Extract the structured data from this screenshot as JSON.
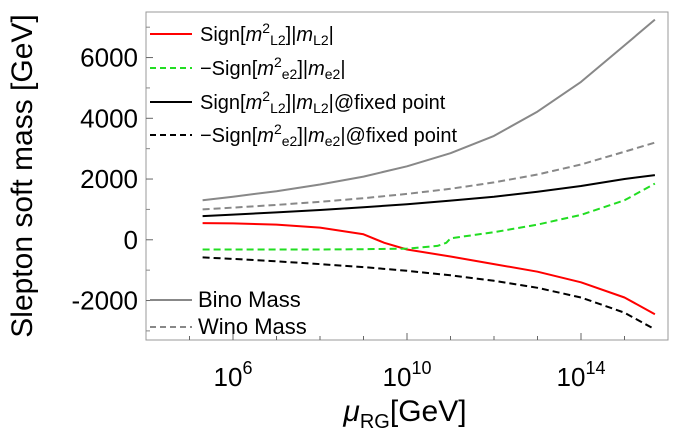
{
  "chart_data": {
    "type": "line",
    "xlabel_main": "μ",
    "xlabel_sub": "RG",
    "xlabel_unit": "[GeV]",
    "ylabel": "Slepton soft mass [GeV]",
    "x_scale": "log10",
    "xlim": [
      10000,
      10000000000000000
    ],
    "ylim": [
      -3300,
      7500
    ],
    "x_ticks": [
      {
        "value": 1000000,
        "base": "10",
        "exp": "6"
      },
      {
        "value": 10000000000,
        "base": "10",
        "exp": "10"
      },
      {
        "value": 100000000000000,
        "base": "10",
        "exp": "14"
      }
    ],
    "y_ticks": [
      -2000,
      0,
      2000,
      4000,
      6000
    ],
    "y_tick_labels": [
      "-2000",
      "0",
      "2000",
      "4000",
      "6000"
    ],
    "grid": false,
    "series": [
      {
        "name": "Sign[m2L2]|mL2|",
        "legend_parts": {
          "a": "Sign[",
          "m": "m",
          "sup": "2",
          "sub1": "L2",
          "b": "]|",
          "m2": "m",
          "sub2": "L2",
          "c": "|",
          "d": ""
        },
        "color": "#ff0000",
        "dash": "solid",
        "x": [
          200000,
          1000000,
          10000000,
          100000000,
          1000000000,
          3000000000,
          10000000000,
          100000000000,
          1000000000000,
          10000000000000,
          100000000000000,
          1000000000000000,
          5000000000000000
        ],
        "y": [
          550,
          540,
          500,
          400,
          180,
          -100,
          -320,
          -550,
          -800,
          -1050,
          -1400,
          -1900,
          -2450
        ]
      },
      {
        "name": "-Sign[m2e2]|me2|",
        "legend_parts": {
          "a": "−Sign[",
          "m": "m",
          "sup": "2",
          "sub1": "e2",
          "b": "]|",
          "m2": "m",
          "sub2": "e2",
          "c": "|",
          "d": ""
        },
        "color": "#22dd22",
        "dash": "dashed",
        "x": [
          200000,
          1000000,
          10000000,
          100000000,
          1000000000,
          10000000000,
          50000000000,
          80000000000,
          100000000000,
          1000000000000,
          10000000000000,
          100000000000000,
          1000000000000000,
          5000000000000000
        ],
        "y": [
          -320,
          -320,
          -320,
          -320,
          -310,
          -290,
          -200,
          -100,
          50,
          250,
          500,
          820,
          1300,
          1850
        ]
      },
      {
        "name": "Sign[m2L2]|mL2|@fixed point",
        "legend_parts": {
          "a": "Sign[",
          "m": "m",
          "sup": "2",
          "sub1": "L2",
          "b": "]|",
          "m2": "m",
          "sub2": "L2",
          "c": "|",
          "d": "@fixed point"
        },
        "color": "#000000",
        "dash": "solid",
        "x": [
          200000,
          1000000,
          10000000,
          100000000,
          1000000000,
          10000000000,
          100000000000,
          1000000000000,
          10000000000000,
          100000000000000,
          1000000000000000,
          5000000000000000
        ],
        "y": [
          780,
          830,
          900,
          980,
          1070,
          1170,
          1290,
          1420,
          1580,
          1770,
          2000,
          2130
        ]
      },
      {
        "name": "-Sign[m2e2]|me2|@fixed point",
        "legend_parts": {
          "a": "−Sign[",
          "m": "m",
          "sup": "2",
          "sub1": "e2",
          "b": "]|",
          "m2": "m",
          "sub2": "e2",
          "c": "|",
          "d": "@fixed point"
        },
        "color": "#000000",
        "dash": "dashed",
        "x": [
          200000,
          1000000,
          10000000,
          100000000,
          1000000000,
          10000000000,
          100000000000,
          1000000000000,
          10000000000000,
          100000000000000,
          1000000000000000,
          5000000000000000
        ],
        "y": [
          -580,
          -630,
          -710,
          -800,
          -900,
          -1020,
          -1170,
          -1350,
          -1580,
          -1900,
          -2400,
          -2950
        ]
      },
      {
        "name": "Bino Mass",
        "legend_parts": {
          "text": "Bino Mass"
        },
        "color": "#888888",
        "dash": "solid",
        "x": [
          200000,
          1000000,
          10000000,
          100000000,
          1000000000,
          10000000000,
          100000000000,
          1000000000000,
          10000000000000,
          100000000000000,
          1000000000000000,
          5000000000000000
        ],
        "y": [
          1300,
          1420,
          1600,
          1820,
          2080,
          2420,
          2850,
          3420,
          4220,
          5200,
          6400,
          7250
        ]
      },
      {
        "name": "Wino Mass",
        "legend_parts": {
          "text": "Wino Mass"
        },
        "color": "#888888",
        "dash": "dashed",
        "x": [
          200000,
          1000000,
          10000000,
          100000000,
          1000000000,
          10000000000,
          100000000000,
          1000000000000,
          10000000000000,
          100000000000000,
          1000000000000000,
          5000000000000000
        ],
        "y": [
          1000,
          1060,
          1150,
          1250,
          1370,
          1510,
          1680,
          1890,
          2150,
          2480,
          2900,
          3200
        ]
      }
    ]
  }
}
